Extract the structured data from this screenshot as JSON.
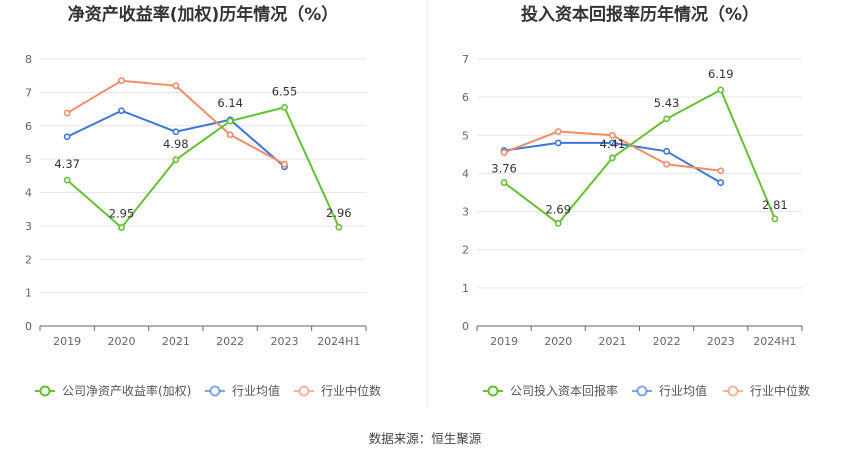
{
  "source_text": "数据来源：恒生聚源",
  "chart_data": [
    {
      "type": "line",
      "title": "净资产收益率(加权)历年情况（%）",
      "categories": [
        "2019",
        "2020",
        "2021",
        "2022",
        "2023",
        "2024H1"
      ],
      "ylim": [
        0,
        8
      ],
      "yticks": [
        "0",
        "1",
        "2",
        "3",
        "4",
        "5",
        "6",
        "7",
        "8"
      ],
      "grid": true,
      "legend_position": "bottom-left",
      "series": [
        {
          "name": "公司净资产收益率(加权)",
          "color": "#63c132",
          "values": [
            4.37,
            2.95,
            4.98,
            6.14,
            6.55,
            2.96
          ],
          "labels": [
            "4.37",
            "2.95",
            "4.98",
            "6.14",
            "6.55",
            "2.96"
          ]
        },
        {
          "name": "行业均值",
          "color": "#3d77d8",
          "values": [
            5.67,
            6.45,
            5.82,
            6.18,
            4.77,
            null
          ]
        },
        {
          "name": "行业中位数",
          "color": "#f08d67",
          "values": [
            6.38,
            7.35,
            7.2,
            5.73,
            4.85,
            null
          ]
        }
      ]
    },
    {
      "type": "line",
      "title": "投入资本回报率历年情况（%）",
      "categories": [
        "2019",
        "2020",
        "2021",
        "2022",
        "2023",
        "2024H1"
      ],
      "ylim": [
        0,
        7
      ],
      "yticks": [
        "0",
        "1",
        "2",
        "3",
        "4",
        "5",
        "6",
        "7"
      ],
      "grid": true,
      "legend_position": "bottom-left",
      "series": [
        {
          "name": "公司投入资本回报率",
          "color": "#63c132",
          "values": [
            3.76,
            2.69,
            4.41,
            5.43,
            6.19,
            2.81
          ],
          "labels": [
            "3.76",
            "2.69",
            "4.41",
            "5.43",
            "6.19",
            "2.81"
          ]
        },
        {
          "name": "行业均值",
          "color": "#3d77d8",
          "values": [
            4.6,
            4.8,
            4.8,
            4.58,
            3.76,
            null
          ]
        },
        {
          "name": "行业中位数",
          "color": "#f08d67",
          "values": [
            4.55,
            5.1,
            5.0,
            4.24,
            4.07,
            null
          ]
        }
      ]
    }
  ]
}
